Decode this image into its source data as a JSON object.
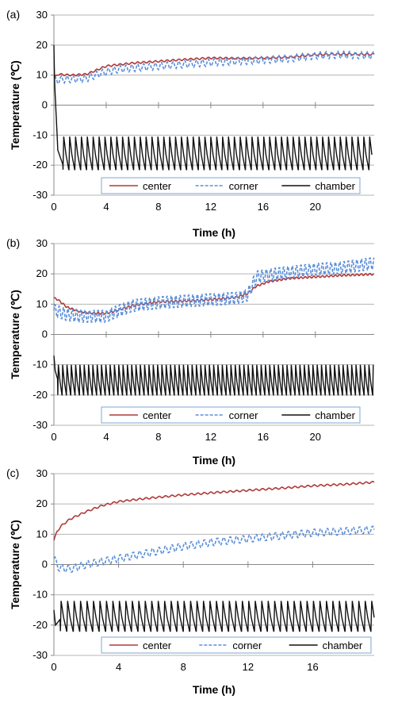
{
  "chart_data": [
    {
      "type": "line",
      "panel_label": "(a)",
      "xlabel": "Time (h)",
      "ylabel": "Temperature (℃)",
      "xlim": [
        0,
        24.5
      ],
      "ylim": [
        -30,
        30
      ],
      "xticks": [
        0,
        4,
        8,
        12,
        16,
        20
      ],
      "yticks": [
        -30,
        -20,
        -10,
        0,
        10,
        20,
        30
      ],
      "grid": "horizontal",
      "legend": "bottom",
      "series": [
        {
          "name": "center",
          "x": [
            0.05,
            0.3,
            0.8,
            1.5,
            2.5,
            3.0,
            4,
            6,
            8,
            10,
            12,
            14,
            16,
            18,
            20,
            22,
            24.5
          ],
          "values": [
            9.2,
            10.3,
            10.1,
            10.0,
            10.3,
            11.2,
            13.0,
            14.0,
            14.6,
            15.2,
            15.7,
            15.6,
            15.7,
            16.0,
            16.8,
            17.0,
            16.9
          ],
          "oscillation_amplitude": 0.3,
          "cycle_h": 0.45
        },
        {
          "name": "corner",
          "x": [
            0.05,
            0.5,
            1.5,
            2.5,
            3.5,
            5,
            8,
            12,
            16,
            18,
            20,
            22,
            24.5
          ],
          "values": [
            8.0,
            8.5,
            8.7,
            8.9,
            10.5,
            12.0,
            13.0,
            14.2,
            15.0,
            15.5,
            16.5,
            16.8,
            16.5
          ],
          "oscillation_amplitude": 1.2,
          "cycle_h": 0.45
        },
        {
          "name": "chamber",
          "x": [
            0,
            0.05,
            0.3,
            0.7,
            24.5
          ],
          "values": [
            20,
            8,
            -15,
            -20,
            -20
          ],
          "oscillation_min": -21.5,
          "oscillation_max": -10.5,
          "cycle_h": 0.45,
          "oscillation_start_h": 0.7
        }
      ]
    },
    {
      "type": "line",
      "panel_label": "(b)",
      "xlabel": "Time (h)",
      "ylabel": "Temperature (℃)",
      "xlim": [
        0,
        24.5
      ],
      "ylim": [
        -30,
        30
      ],
      "xticks": [
        0,
        4,
        8,
        12,
        16,
        20
      ],
      "yticks": [
        -30,
        -20,
        -10,
        0,
        10,
        20,
        30
      ],
      "grid": "horizontal",
      "legend": "bottom",
      "series": [
        {
          "name": "center",
          "x": [
            0,
            0.3,
            1,
            2,
            3,
            4,
            4.5,
            6,
            8,
            10,
            12,
            14,
            14.8,
            15.5,
            16.5,
            18,
            20,
            22,
            24.5
          ],
          "values": [
            12.0,
            11.5,
            9.0,
            7.5,
            7.0,
            7.0,
            7.5,
            9.5,
            10.8,
            11.0,
            11.5,
            12.3,
            13.5,
            16.0,
            17.5,
            18.5,
            19.0,
            19.5,
            19.9
          ],
          "oscillation_amplitude": 0.3,
          "cycle_h": 0.33
        },
        {
          "name": "corner",
          "x": [
            0,
            1,
            2,
            4,
            4.5,
            6,
            8,
            10,
            12,
            14,
            14.8,
            15.5,
            17,
            20,
            22,
            24.5
          ],
          "values": [
            8.0,
            6.5,
            6.0,
            6.0,
            7.0,
            9.5,
            10.5,
            11.0,
            11.5,
            12.0,
            13.0,
            19.0,
            20.0,
            21.5,
            22.0,
            23.5
          ],
          "oscillation_amplitude": 2.2,
          "cycle_h": 0.33
        },
        {
          "name": "chamber",
          "x": [
            0,
            0.1,
            0.3,
            24.5
          ],
          "values": [
            -7,
            -12,
            -15,
            -15
          ],
          "oscillation_min": -20.0,
          "oscillation_max": -10.0,
          "cycle_h": 0.33,
          "oscillation_start_h": 0.3
        }
      ]
    },
    {
      "type": "line",
      "panel_label": "(c)",
      "xlabel": "Time (h)",
      "ylabel": "Temperature (℃)",
      "xlim": [
        0,
        19.8
      ],
      "ylim": [
        -30,
        30
      ],
      "xticks": [
        0,
        4,
        8,
        12,
        16
      ],
      "yticks": [
        -30,
        -20,
        -10,
        0,
        10,
        20,
        30
      ],
      "grid": "horizontal",
      "legend": "bottom",
      "series": [
        {
          "name": "center",
          "x": [
            0,
            0.2,
            0.5,
            1,
            2,
            3,
            4,
            6,
            8,
            10,
            12,
            14,
            16,
            18,
            19.8
          ],
          "values": [
            8.0,
            11.0,
            13.0,
            15.0,
            17.5,
            19.5,
            20.8,
            22.0,
            23.0,
            23.8,
            24.5,
            25.2,
            26.0,
            26.5,
            27.2
          ],
          "oscillation_amplitude": 0.3,
          "cycle_h": 0.4
        },
        {
          "name": "corner",
          "x": [
            0,
            0.3,
            1,
            2,
            4,
            6,
            8,
            10,
            12,
            14,
            16,
            18,
            19.8
          ],
          "values": [
            2.0,
            -1.0,
            -1.5,
            0.0,
            2.0,
            4.0,
            6.0,
            7.5,
            8.5,
            9.5,
            10.5,
            11.0,
            11.5
          ],
          "oscillation_amplitude": 1.3,
          "cycle_h": 0.4
        },
        {
          "name": "chamber",
          "x": [
            0,
            0.1,
            0.4,
            19.8
          ],
          "values": [
            -15,
            -20,
            -18,
            -18
          ],
          "oscillation_min": -22.0,
          "oscillation_max": -12.0,
          "cycle_h": 0.4,
          "oscillation_start_h": 0.4
        }
      ]
    }
  ],
  "colors": {
    "center": "#b03a3a",
    "corner": "#5b8fd9",
    "chamber": "#111111",
    "grid": "#b5b5b5",
    "axis": "#888888",
    "legend_border": "#7ea6d8"
  }
}
